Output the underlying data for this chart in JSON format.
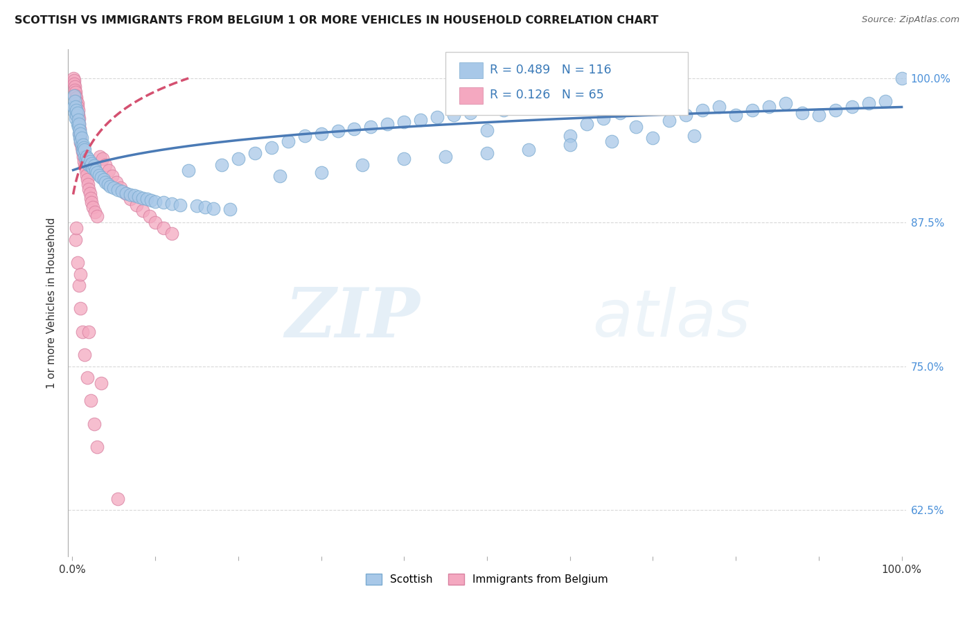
{
  "title": "SCOTTISH VS IMMIGRANTS FROM BELGIUM 1 OR MORE VEHICLES IN HOUSEHOLD CORRELATION CHART",
  "source": "Source: ZipAtlas.com",
  "ylabel": "1 or more Vehicles in Household",
  "ytick_labels": [
    "62.5%",
    "75.0%",
    "87.5%",
    "100.0%"
  ],
  "ytick_values": [
    0.625,
    0.75,
    0.875,
    1.0
  ],
  "legend_entries": [
    {
      "label": "Scottish",
      "color": "#a8c8e8"
    },
    {
      "label": "Immigrants from Belgium",
      "color": "#f4a8c0"
    }
  ],
  "R_scottish": 0.489,
  "N_scottish": 116,
  "R_belgium": 0.126,
  "N_belgium": 65,
  "line_color_scottish": "#4a7ab5",
  "line_color_belgium": "#d45070",
  "scatter_color_scottish": "#a8c8e8",
  "scatter_color_belgium": "#f4a8c0",
  "scatter_edge_scottish": "#7aaad0",
  "scatter_edge_belgium": "#d880a0",
  "background_color": "#ffffff",
  "watermark_zip": "ZIP",
  "watermark_atlas": "atlas",
  "grid_color": "#d8d8d8",
  "ylim_min": 0.585,
  "ylim_max": 1.025,
  "xlim_min": -0.005,
  "xlim_max": 1.005,
  "sc_x": [
    0.001,
    0.002,
    0.003,
    0.003,
    0.004,
    0.004,
    0.005,
    0.005,
    0.006,
    0.006,
    0.007,
    0.007,
    0.008,
    0.008,
    0.009,
    0.009,
    0.01,
    0.01,
    0.011,
    0.011,
    0.012,
    0.013,
    0.013,
    0.014,
    0.015,
    0.015,
    0.016,
    0.017,
    0.018,
    0.019,
    0.02,
    0.021,
    0.022,
    0.023,
    0.025,
    0.026,
    0.028,
    0.03,
    0.032,
    0.035,
    0.038,
    0.04,
    0.043,
    0.046,
    0.05,
    0.055,
    0.06,
    0.065,
    0.07,
    0.075,
    0.08,
    0.085,
    0.09,
    0.095,
    0.1,
    0.11,
    0.12,
    0.13,
    0.14,
    0.15,
    0.16,
    0.17,
    0.18,
    0.19,
    0.2,
    0.22,
    0.24,
    0.26,
    0.28,
    0.3,
    0.32,
    0.34,
    0.36,
    0.38,
    0.4,
    0.42,
    0.44,
    0.46,
    0.48,
    0.5,
    0.52,
    0.54,
    0.56,
    0.58,
    0.6,
    0.62,
    0.64,
    0.66,
    0.68,
    0.7,
    0.72,
    0.74,
    0.76,
    0.78,
    0.8,
    0.82,
    0.84,
    0.86,
    0.88,
    0.9,
    0.92,
    0.94,
    0.96,
    0.98,
    1.0,
    0.25,
    0.3,
    0.35,
    0.4,
    0.45,
    0.5,
    0.55,
    0.6,
    0.65,
    0.7,
    0.75
  ],
  "sc_y": [
    0.975,
    0.985,
    0.98,
    0.97,
    0.965,
    0.975,
    0.968,
    0.972,
    0.96,
    0.97,
    0.958,
    0.964,
    0.952,
    0.96,
    0.948,
    0.955,
    0.945,
    0.952,
    0.942,
    0.948,
    0.938,
    0.942,
    0.936,
    0.94,
    0.932,
    0.938,
    0.93,
    0.932,
    0.928,
    0.93,
    0.925,
    0.928,
    0.924,
    0.926,
    0.922,
    0.924,
    0.92,
    0.918,
    0.916,
    0.914,
    0.912,
    0.91,
    0.908,
    0.906,
    0.905,
    0.903,
    0.902,
    0.9,
    0.899,
    0.898,
    0.897,
    0.896,
    0.895,
    0.894,
    0.893,
    0.892,
    0.891,
    0.89,
    0.92,
    0.889,
    0.888,
    0.887,
    0.925,
    0.886,
    0.93,
    0.935,
    0.94,
    0.945,
    0.95,
    0.952,
    0.954,
    0.956,
    0.958,
    0.96,
    0.962,
    0.964,
    0.966,
    0.968,
    0.97,
    0.955,
    0.972,
    0.974,
    0.976,
    0.978,
    0.95,
    0.96,
    0.965,
    0.97,
    0.958,
    0.975,
    0.963,
    0.968,
    0.972,
    0.975,
    0.968,
    0.972,
    0.975,
    0.978,
    0.97,
    0.968,
    0.972,
    0.975,
    0.978,
    0.98,
    1.0,
    0.915,
    0.918,
    0.925,
    0.93,
    0.932,
    0.935,
    0.938,
    0.942,
    0.945,
    0.948,
    0.95
  ],
  "be_x": [
    0.001,
    0.002,
    0.002,
    0.003,
    0.003,
    0.004,
    0.004,
    0.005,
    0.005,
    0.006,
    0.006,
    0.007,
    0.007,
    0.008,
    0.008,
    0.009,
    0.009,
    0.01,
    0.01,
    0.011,
    0.012,
    0.013,
    0.014,
    0.015,
    0.016,
    0.017,
    0.018,
    0.019,
    0.02,
    0.021,
    0.022,
    0.023,
    0.025,
    0.027,
    0.03,
    0.033,
    0.036,
    0.04,
    0.044,
    0.048,
    0.053,
    0.058,
    0.064,
    0.07,
    0.077,
    0.085,
    0.093,
    0.1,
    0.11,
    0.12,
    0.004,
    0.006,
    0.008,
    0.01,
    0.012,
    0.015,
    0.018,
    0.022,
    0.026,
    0.03,
    0.005,
    0.01,
    0.02,
    0.035,
    0.055
  ],
  "be_y": [
    1.0,
    0.998,
    0.995,
    0.993,
    0.99,
    0.988,
    0.985,
    0.983,
    0.98,
    0.978,
    0.975,
    0.972,
    0.968,
    0.965,
    0.96,
    0.956,
    0.952,
    0.948,
    0.944,
    0.94,
    0.936,
    0.932,
    0.928,
    0.924,
    0.92,
    0.916,
    0.912,
    0.908,
    0.904,
    0.9,
    0.896,
    0.892,
    0.888,
    0.884,
    0.88,
    0.932,
    0.93,
    0.925,
    0.92,
    0.915,
    0.91,
    0.905,
    0.9,
    0.895,
    0.89,
    0.885,
    0.88,
    0.875,
    0.87,
    0.865,
    0.86,
    0.84,
    0.82,
    0.8,
    0.78,
    0.76,
    0.74,
    0.72,
    0.7,
    0.68,
    0.87,
    0.83,
    0.78,
    0.735,
    0.635
  ]
}
